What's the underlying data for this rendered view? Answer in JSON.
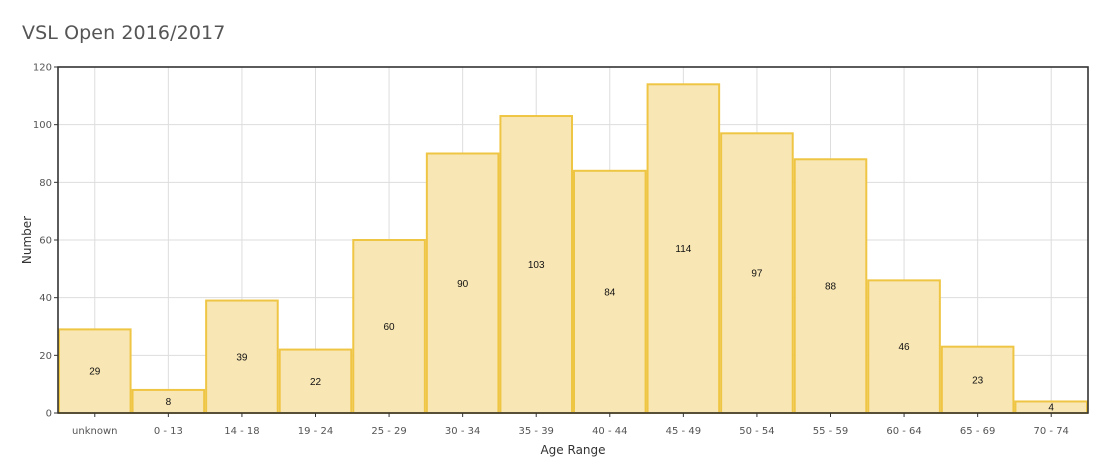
{
  "title": "VSL Open 2016/2017",
  "chart_data": {
    "type": "bar",
    "title": "VSL Open 2016/2017",
    "xlabel": "Age Range",
    "ylabel": "Number",
    "categories": [
      "unknown",
      "0 - 13",
      "14 - 18",
      "19 - 24",
      "25 - 29",
      "30 - 34",
      "35 - 39",
      "40 - 44",
      "45 - 49",
      "50 - 54",
      "55 - 59",
      "60 - 64",
      "65 - 69",
      "70 - 74"
    ],
    "values": [
      29,
      8,
      39,
      22,
      60,
      90,
      103,
      84,
      114,
      97,
      88,
      46,
      23,
      4
    ],
    "ylim": [
      0,
      120
    ],
    "yticks": [
      0,
      20,
      40,
      60,
      80,
      100,
      120
    ],
    "grid": true,
    "legend": "none",
    "colors": {
      "bar_fill": "#f8e6b4",
      "bar_stroke": "#efc544",
      "grid": "#dddddd",
      "frame": "#333333"
    }
  }
}
